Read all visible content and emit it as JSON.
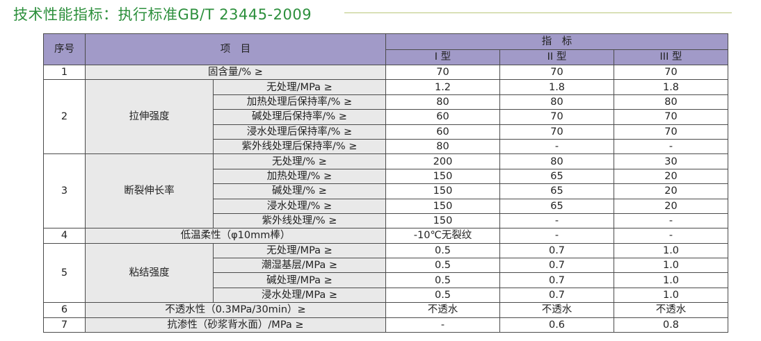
{
  "title": "技术性能指标：执行标准GB/T 23445-2009",
  "table": {
    "header": {
      "seq": "序号",
      "item": "项　目",
      "index": "指　标",
      "types": [
        "I 型",
        "II 型",
        "III 型"
      ]
    },
    "rows": [
      {
        "no": "1",
        "item": "固含量/% ≥",
        "v": [
          "70",
          "70",
          "70"
        ]
      },
      {
        "no": "2",
        "group": "拉伸强度",
        "subs": [
          {
            "item": "无处理/MPa ≥",
            "v": [
              "1.2",
              "1.8",
              "1.8"
            ]
          },
          {
            "item": "加热处理后保持率/% ≥",
            "v": [
              "80",
              "80",
              "80"
            ]
          },
          {
            "item": "碱处理后保持率/% ≥",
            "v": [
              "60",
              "70",
              "70"
            ]
          },
          {
            "item": "浸水处理后保持率/% ≥",
            "v": [
              "60",
              "70",
              "70"
            ]
          },
          {
            "item": "紫外线处理后保持率/% ≥",
            "v": [
              "80",
              "-",
              "-"
            ]
          }
        ]
      },
      {
        "no": "3",
        "group": "断裂伸长率",
        "subs": [
          {
            "item": "无处理/% ≥",
            "v": [
              "200",
              "80",
              "30"
            ]
          },
          {
            "item": "加热处理/% ≥",
            "v": [
              "150",
              "65",
              "20"
            ]
          },
          {
            "item": "碱处理/% ≥",
            "v": [
              "150",
              "65",
              "20"
            ]
          },
          {
            "item": "浸水处理/% ≥",
            "v": [
              "150",
              "65",
              "20"
            ]
          },
          {
            "item": "紫外线处理/% ≥",
            "v": [
              "150",
              "-",
              "-"
            ]
          }
        ]
      },
      {
        "no": "4",
        "item": "低温柔性（φ10mm棒）",
        "v": [
          "-10℃无裂纹",
          "-",
          "-"
        ]
      },
      {
        "no": "5",
        "group": "粘结强度",
        "subs": [
          {
            "item": "无处理/MPa ≥",
            "v": [
              "0.5",
              "0.7",
              "1.0"
            ]
          },
          {
            "item": "潮湿基层/MPa ≥",
            "v": [
              "0.5",
              "0.7",
              "1.0"
            ]
          },
          {
            "item": "碱处理/MPa ≥",
            "v": [
              "0.5",
              "0.7",
              "1.0"
            ]
          },
          {
            "item": "浸水处理/MPa ≥",
            "v": [
              "0.5",
              "0.7",
              "1.0"
            ]
          }
        ]
      },
      {
        "no": "6",
        "item": "不透水性（0.3MPa/30min）≥",
        "v": [
          "不透水",
          "不透水",
          "不透水"
        ]
      },
      {
        "no": "7",
        "item": "抗渗性（砂浆背水面）/MPa ≥",
        "v": [
          "-",
          "0.6",
          "0.8"
        ]
      }
    ]
  }
}
